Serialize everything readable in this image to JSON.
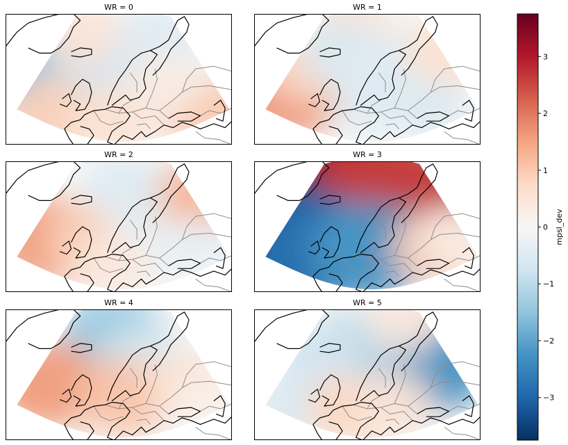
{
  "chart_data": {
    "type": "heatmap",
    "panels": [
      {
        "title": "WR = 0",
        "centers": [
          {
            "lon": -25,
            "lat": 52,
            "value": -1.7
          },
          {
            "lon": -10,
            "lat": 47,
            "value": -0.8
          },
          {
            "lon": 10,
            "lat": 64,
            "value": -0.7
          },
          {
            "lon": 28,
            "lat": 70,
            "value": -0.5
          },
          {
            "lon": -25,
            "lat": 40,
            "value": 0.9
          },
          {
            "lon": 5,
            "lat": 38,
            "value": 0.6
          },
          {
            "lon": 50,
            "lat": 40,
            "value": 1.0
          },
          {
            "lon": 30,
            "lat": 52,
            "value": 0.3
          },
          {
            "lon": -10,
            "lat": 72,
            "value": 0.5
          }
        ]
      },
      {
        "title": "WR = 1",
        "centers": [
          {
            "lon": -30,
            "lat": 48,
            "value": 1.7
          },
          {
            "lon": -20,
            "lat": 58,
            "value": 0.8
          },
          {
            "lon": 0,
            "lat": 75,
            "value": 0.6
          },
          {
            "lon": -5,
            "lat": 65,
            "value": -0.6
          },
          {
            "lon": 20,
            "lat": 60,
            "value": -0.5
          },
          {
            "lon": 35,
            "lat": 45,
            "value": -0.6
          },
          {
            "lon": 10,
            "lat": 45,
            "value": -0.5
          },
          {
            "lon": 45,
            "lat": 65,
            "value": 0.6
          }
        ]
      },
      {
        "title": "WR = 2",
        "centers": [
          {
            "lon": -25,
            "lat": 48,
            "value": 1.6
          },
          {
            "lon": -5,
            "lat": 48,
            "value": 0.9
          },
          {
            "lon": 40,
            "lat": 62,
            "value": 1.3
          },
          {
            "lon": 10,
            "lat": 70,
            "value": -0.5
          },
          {
            "lon": 20,
            "lat": 48,
            "value": -0.3
          },
          {
            "lon": 45,
            "lat": 45,
            "value": -0.3
          },
          {
            "lon": 5,
            "lat": 38,
            "value": 0.4
          }
        ]
      },
      {
        "title": "WR = 3",
        "centers": [
          {
            "lon": -10,
            "lat": 70,
            "value": 3.4
          },
          {
            "lon": 30,
            "lat": 63,
            "value": 3.0
          },
          {
            "lon": 15,
            "lat": 72,
            "value": 2.6
          },
          {
            "lon": -30,
            "lat": 48,
            "value": -3.4
          },
          {
            "lon": -15,
            "lat": 44,
            "value": -2.8
          },
          {
            "lon": 10,
            "lat": 44,
            "value": -2.2
          },
          {
            "lon": 40,
            "lat": 45,
            "value": 0.9
          },
          {
            "lon": 50,
            "lat": 50,
            "value": 0.3
          }
        ]
      },
      {
        "title": "WR = 4",
        "centers": [
          {
            "lon": 5,
            "lat": 70,
            "value": -1.4
          },
          {
            "lon": 20,
            "lat": 60,
            "value": -0.6
          },
          {
            "lon": -25,
            "lat": 50,
            "value": 1.6
          },
          {
            "lon": 10,
            "lat": 45,
            "value": 1.1
          },
          {
            "lon": 40,
            "lat": 50,
            "value": 0.6
          },
          {
            "lon": 50,
            "lat": 42,
            "value": 0.2
          }
        ]
      },
      {
        "title": "WR = 5",
        "centers": [
          {
            "lon": 35,
            "lat": 58,
            "value": -2.3
          },
          {
            "lon": 0,
            "lat": 63,
            "value": -1.2
          },
          {
            "lon": -15,
            "lat": 62,
            "value": -0.7
          },
          {
            "lon": -25,
            "lat": 42,
            "value": -0.6
          },
          {
            "lon": 0,
            "lat": 40,
            "value": 0.8
          },
          {
            "lon": 20,
            "lat": 42,
            "value": 0.5
          },
          {
            "lon": 25,
            "lat": 75,
            "value": 0.4
          }
        ]
      }
    ],
    "colorbar": {
      "label": "mpsl_dev",
      "colormap": "RdBu_r",
      "vmin": -3.75,
      "vmax": 3.75,
      "ticks": [
        3,
        2,
        1,
        0,
        -1,
        -2,
        -3
      ],
      "tick_labels": [
        "3",
        "2",
        "1",
        "0",
        "−1",
        "−2",
        "−3"
      ]
    },
    "domain": {
      "lon_min": -40,
      "lon_max": 60,
      "lat_min": 30,
      "lat_max": 80
    },
    "grid": false,
    "coastline_color": "#000000",
    "border_color": "#8c8c8c"
  }
}
